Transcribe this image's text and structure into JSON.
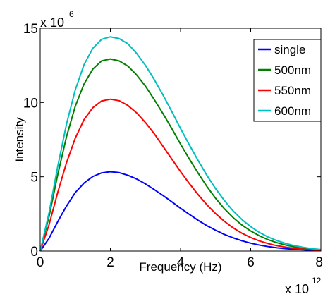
{
  "chart_data": {
    "type": "line",
    "title": "",
    "xlabel": "Frequency (Hz)",
    "ylabel": "Intensity",
    "x_multiplier_label": {
      "base": "x 10",
      "exponent": "12"
    },
    "y_multiplier_label": {
      "base": "x 10",
      "exponent": "6"
    },
    "xlim": [
      0,
      8
    ],
    "ylim": [
      0,
      15
    ],
    "x_tick_values": [
      0,
      2,
      4,
      6,
      8
    ],
    "x_tick_labels": [
      "0",
      "2",
      "4",
      "6",
      "8"
    ],
    "y_tick_values": [
      0,
      5,
      10,
      15
    ],
    "y_tick_labels": [
      "0",
      "5",
      "10",
      "15"
    ],
    "grid": false,
    "legend_position": "top-right",
    "x": [
      0,
      0.25,
      0.5,
      0.75,
      1.0,
      1.25,
      1.5,
      1.75,
      2.0,
      2.25,
      2.5,
      2.75,
      3.0,
      3.25,
      3.5,
      3.75,
      4.0,
      4.25,
      4.5,
      4.75,
      5.0,
      5.25,
      5.5,
      5.75,
      6.0,
      6.25,
      6.5,
      6.75,
      7.0,
      7.25,
      7.5,
      7.75,
      8.0
    ],
    "series": [
      {
        "name": "single",
        "color": "#0000ff",
        "values": [
          0,
          0.85,
          1.98,
          3.03,
          3.94,
          4.58,
          5.02,
          5.26,
          5.34,
          5.28,
          5.1,
          4.85,
          4.52,
          4.14,
          3.74,
          3.32,
          2.88,
          2.47,
          2.07,
          1.71,
          1.4,
          1.12,
          0.89,
          0.69,
          0.53,
          0.4,
          0.3,
          0.22,
          0.16,
          0.11,
          0.08,
          0.05,
          0.03
        ]
      },
      {
        "name": "500nm",
        "color": "#007f00",
        "values": [
          0,
          2.3,
          5.15,
          7.7,
          9.75,
          11.25,
          12.25,
          12.8,
          12.93,
          12.8,
          12.45,
          11.85,
          11.1,
          10.2,
          9.25,
          8.25,
          7.2,
          6.2,
          5.25,
          4.35,
          3.55,
          2.85,
          2.25,
          1.75,
          1.35,
          1.02,
          0.76,
          0.56,
          0.4,
          0.28,
          0.19,
          0.12,
          0.07
        ]
      },
      {
        "name": "550nm",
        "color": "#ff0000",
        "values": [
          0,
          1.75,
          3.95,
          5.95,
          7.6,
          8.85,
          9.65,
          10.1,
          10.22,
          10.12,
          9.8,
          9.3,
          8.65,
          7.9,
          7.05,
          6.2,
          5.35,
          4.55,
          3.8,
          3.12,
          2.52,
          2.0,
          1.56,
          1.2,
          0.91,
          0.68,
          0.5,
          0.36,
          0.26,
          0.18,
          0.12,
          0.08,
          0.05
        ]
      },
      {
        "name": "600nm",
        "color": "#00bfbf",
        "values": [
          0,
          2.55,
          5.7,
          8.55,
          10.85,
          12.55,
          13.65,
          14.25,
          14.42,
          14.3,
          13.95,
          13.3,
          12.5,
          11.55,
          10.5,
          9.4,
          8.25,
          7.15,
          6.1,
          5.1,
          4.2,
          3.4,
          2.7,
          2.12,
          1.64,
          1.25,
          0.94,
          0.7,
          0.51,
          0.36,
          0.25,
          0.16,
          0.1
        ]
      }
    ]
  }
}
